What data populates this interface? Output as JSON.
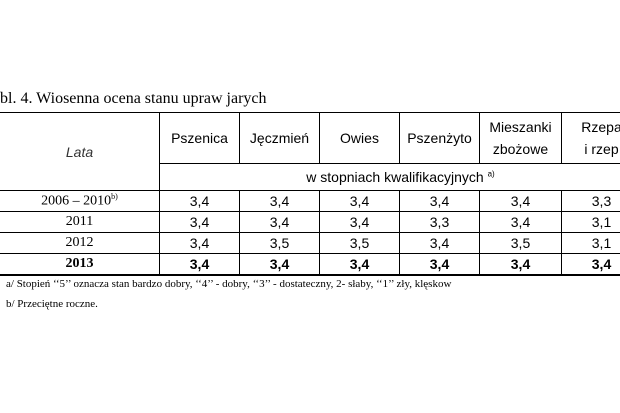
{
  "title": "bl. 4. Wiosenna ocena stanu upraw jarych",
  "table": {
    "header": {
      "first": "Lata",
      "columns": [
        [
          "Pszenica"
        ],
        [
          "Jęczmień"
        ],
        [
          "Owies"
        ],
        [
          "Pszenżyto"
        ],
        [
          "Mieszanki",
          "zbożowe"
        ],
        [
          "Rzepa",
          "i rzep"
        ]
      ]
    },
    "unit": {
      "text": "w stopniach kwalifikacyjnych",
      "note": "a)"
    },
    "rows": [
      {
        "label": "2006 – 2010",
        "note": "b)",
        "values": [
          "3,4",
          "3,4",
          "3,4",
          "3,4",
          "3,4",
          "3,3"
        ]
      },
      {
        "label": "2011",
        "values": [
          "3,4",
          "3,4",
          "3,4",
          "3,3",
          "3,4",
          "3,1"
        ]
      },
      {
        "label": "2012",
        "values": [
          "3,4",
          "3,5",
          "3,5",
          "3,4",
          "3,5",
          "3,1"
        ]
      },
      {
        "label": "2013",
        "values": [
          "3,4",
          "3,4",
          "3,4",
          "3,4",
          "3,4",
          "3,4"
        ]
      }
    ]
  },
  "footnotes": [
    "a/ Stopień ‘‘5’’ oznacza stan bardzo dobry, ‘‘4’’ - dobry, ‘‘3’’ - dostateczny, 2- słaby, ‘‘1’’ zły, klęskow",
    "b/ Przeciętne roczne."
  ]
}
